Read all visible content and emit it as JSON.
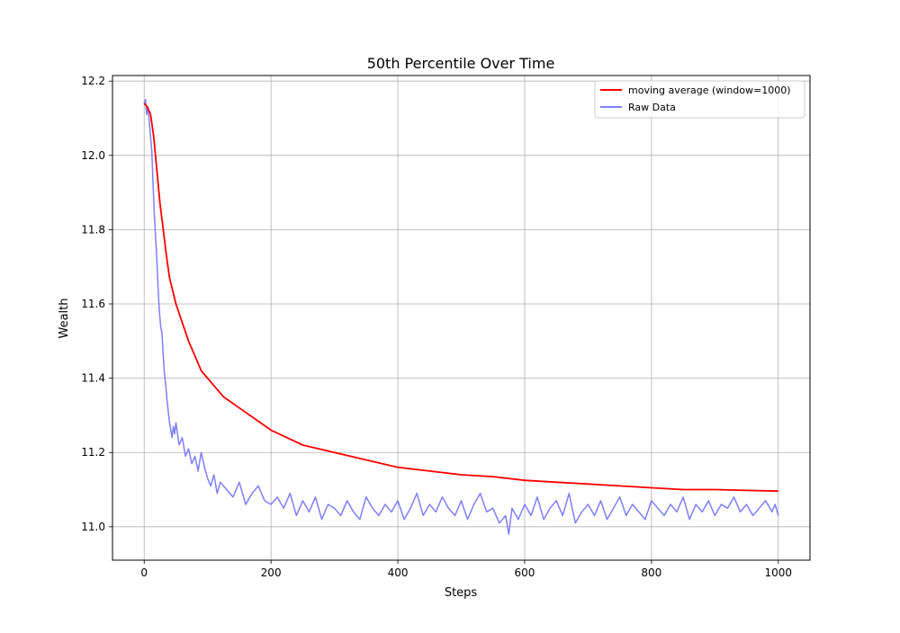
{
  "chart_data": {
    "type": "line",
    "title": "50th Percentile Over Time",
    "xlabel": "Steps",
    "ylabel": "Wealth",
    "xlim": [
      -50,
      1050
    ],
    "ylim": [
      10.91,
      12.215
    ],
    "xticks": [
      0,
      200,
      400,
      600,
      800,
      1000
    ],
    "xtick_labels": [
      "0",
      "200",
      "400",
      "600",
      "800",
      "1000"
    ],
    "yticks": [
      11.0,
      11.2,
      11.4,
      11.6,
      11.8,
      12.0,
      12.2
    ],
    "ytick_labels": [
      "11.0",
      "11.2",
      "11.4",
      "11.6",
      "11.8",
      "12.0",
      "12.2"
    ],
    "grid": true,
    "legend_position": "top-right",
    "series": [
      {
        "name": "moving average (window=1000)",
        "color": "#ff0000",
        "x": [
          0,
          5,
          10,
          15,
          20,
          25,
          30,
          35,
          40,
          50,
          60,
          70,
          80,
          90,
          100,
          110,
          125,
          150,
          175,
          200,
          225,
          250,
          275,
          300,
          350,
          400,
          450,
          500,
          550,
          600,
          650,
          700,
          750,
          800,
          850,
          900,
          950,
          1000
        ],
        "y": [
          12.14,
          12.13,
          12.11,
          12.05,
          11.96,
          11.87,
          11.8,
          11.73,
          11.67,
          11.6,
          11.55,
          11.5,
          11.46,
          11.42,
          11.4,
          11.38,
          11.35,
          11.32,
          11.29,
          11.26,
          11.24,
          11.22,
          11.21,
          11.2,
          11.18,
          11.16,
          11.15,
          11.14,
          11.135,
          11.125,
          11.12,
          11.115,
          11.11,
          11.105,
          11.1,
          11.1,
          11.098,
          11.096
        ]
      },
      {
        "name": "Raw Data",
        "color": "#7f7fff",
        "x": [
          0,
          2,
          4,
          6,
          8,
          10,
          12,
          14,
          16,
          18,
          20,
          22,
          24,
          26,
          28,
          30,
          32,
          34,
          36,
          38,
          40,
          42,
          44,
          46,
          48,
          50,
          55,
          60,
          65,
          70,
          75,
          80,
          85,
          90,
          95,
          100,
          105,
          110,
          115,
          120,
          130,
          140,
          150,
          160,
          170,
          180,
          190,
          200,
          210,
          220,
          230,
          240,
          250,
          260,
          270,
          280,
          290,
          300,
          310,
          320,
          330,
          340,
          350,
          360,
          370,
          380,
          390,
          400,
          410,
          420,
          430,
          440,
          450,
          460,
          470,
          480,
          490,
          500,
          510,
          520,
          530,
          540,
          550,
          560,
          570,
          575,
          580,
          590,
          600,
          610,
          620,
          630,
          640,
          650,
          660,
          670,
          680,
          690,
          700,
          710,
          720,
          730,
          740,
          750,
          760,
          770,
          780,
          790,
          800,
          810,
          820,
          830,
          840,
          850,
          860,
          870,
          880,
          890,
          900,
          910,
          920,
          930,
          940,
          950,
          960,
          970,
          980,
          990,
          995,
          1000
        ],
        "y": [
          12.14,
          12.15,
          12.11,
          12.13,
          12.09,
          12.05,
          12.01,
          11.92,
          11.84,
          11.78,
          11.72,
          11.64,
          11.58,
          11.54,
          11.52,
          11.46,
          11.41,
          11.38,
          11.34,
          11.31,
          11.28,
          11.26,
          11.24,
          11.27,
          11.25,
          11.28,
          11.22,
          11.24,
          11.19,
          11.21,
          11.17,
          11.19,
          11.15,
          11.2,
          11.16,
          11.13,
          11.11,
          11.14,
          11.09,
          11.12,
          11.1,
          11.08,
          11.12,
          11.06,
          11.09,
          11.11,
          11.07,
          11.06,
          11.08,
          11.05,
          11.09,
          11.03,
          11.07,
          11.04,
          11.08,
          11.02,
          11.06,
          11.05,
          11.03,
          11.07,
          11.04,
          11.02,
          11.08,
          11.05,
          11.03,
          11.06,
          11.04,
          11.07,
          11.02,
          11.05,
          11.09,
          11.03,
          11.06,
          11.04,
          11.08,
          11.05,
          11.03,
          11.07,
          11.02,
          11.06,
          11.09,
          11.04,
          11.05,
          11.01,
          11.03,
          10.98,
          11.05,
          11.02,
          11.06,
          11.03,
          11.08,
          11.02,
          11.05,
          11.07,
          11.03,
          11.09,
          11.01,
          11.04,
          11.06,
          11.03,
          11.07,
          11.02,
          11.05,
          11.08,
          11.03,
          11.06,
          11.04,
          11.02,
          11.07,
          11.05,
          11.03,
          11.06,
          11.04,
          11.08,
          11.02,
          11.06,
          11.04,
          11.07,
          11.03,
          11.06,
          11.05,
          11.08,
          11.04,
          11.06,
          11.03,
          11.05,
          11.07,
          11.04,
          11.06,
          11.03
        ]
      }
    ]
  }
}
